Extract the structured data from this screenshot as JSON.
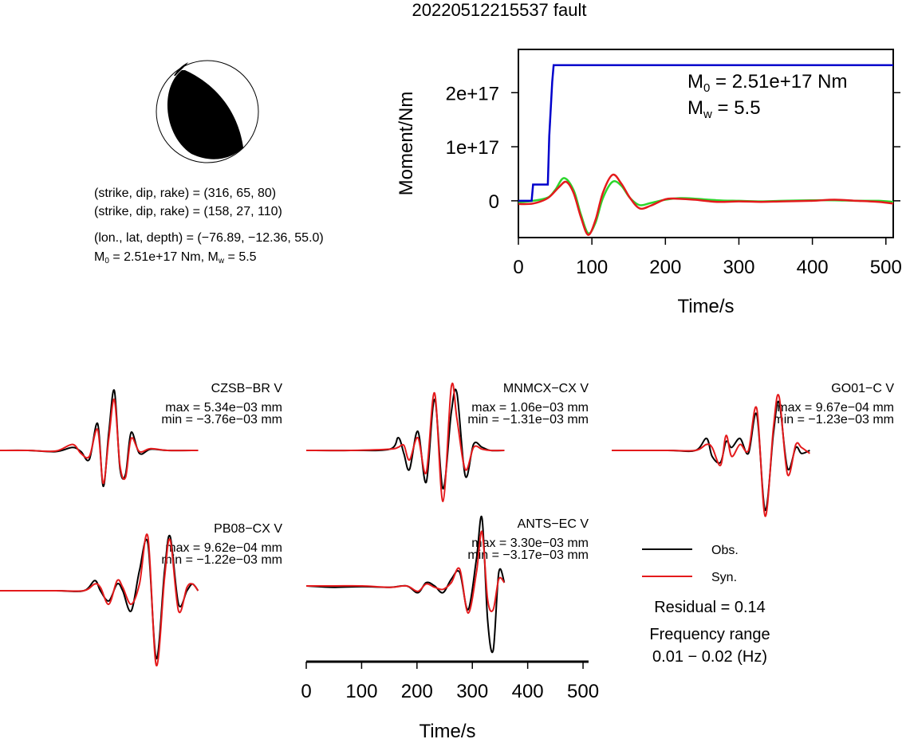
{
  "title": "20220512215537 fault",
  "mechanism": {
    "line1": "(strike, dip, rake) = (316, 65, 80)",
    "line2": "(strike, dip, rake) = (158, 27, 110)",
    "line3": "(lon., lat, depth) = (−76.89, −12.36, 55.0)",
    "line4_m0": "M",
    "line4_sub": "0",
    "line4_rest": " = 2.51e+17 Nm, M",
    "line4_sub2": "w",
    "line4_end": " = 5.5"
  },
  "moment_panel": {
    "ylabel": "Moment/Nm",
    "xlabel": "Time/s",
    "m0_label": "M",
    "m0_sub": "0",
    "m0_value": " = 2.51e+17 Nm",
    "mw_label": "M",
    "mw_sub": "w",
    "mw_value": " = 5.5",
    "yticks": [
      "0",
      "1e+17",
      "2e+17"
    ],
    "xticks": [
      "0",
      "100",
      "200",
      "300",
      "400",
      "500"
    ]
  },
  "stations": [
    {
      "name": "CZSB−BR V",
      "max": "max = 5.34e−03 mm",
      "min": "min = −3.76e−03 mm"
    },
    {
      "name": "MNMCX−CX V",
      "max": "max = 1.06e−03 mm",
      "min": "min = −1.31e−03 mm"
    },
    {
      "name": "GO01−C V",
      "max": "max = 9.67e−04 mm",
      "min": "min = −1.23e−03 mm"
    },
    {
      "name": "PB08−CX V",
      "max": "max = 9.62e−04 mm",
      "min": "min = −1.22e−03 mm"
    },
    {
      "name": "ANTS−EC V",
      "max": "max = 3.30e−03 mm",
      "min": "min = −3.17e−03 mm"
    }
  ],
  "legend": {
    "obs": "Obs.",
    "syn": "Syn.",
    "obs_color": "#000000",
    "syn_color": "#e41a1c"
  },
  "residual": "Residual = 0.14",
  "freq_label": "Frequency range",
  "freq_value": "0.01 − 0.02 (Hz)",
  "wave_axis": {
    "xlabel": "Time/s",
    "xticks": [
      "0",
      "100",
      "200",
      "300",
      "400",
      "500"
    ]
  },
  "chart_data": [
    {
      "type": "line",
      "title": "20220512215537 fault",
      "xlabel": "Time/s",
      "ylabel": "Moment/Nm",
      "xlim": [
        0,
        510
      ],
      "ylim": [
        -6.8e+16,
        2.8e+17
      ],
      "series": [
        {
          "color": "#0000cc",
          "x": [
            0,
            18,
            20,
            32,
            40,
            42,
            46,
            48,
            510
          ],
          "y": [
            0,
            0,
            3e+16,
            3e+16,
            3e+16,
            1.2e+17,
            2.2e+17,
            2.51e+17,
            2.51e+17
          ]
        },
        {
          "color": "#e41a1c",
          "x": [
            0,
            20,
            40,
            55,
            65,
            75,
            85,
            95,
            105,
            115,
            128,
            140,
            152,
            165,
            180,
            200,
            215,
            240,
            270,
            300,
            330,
            360,
            400,
            430,
            460,
            490,
            510
          ],
          "y": [
            -6000000000000000.0,
            -5000000000000000.0,
            5000000000000000.0,
            2.5e+16,
            3.5e+16,
            1.5e+16,
            -3e+16,
            -6.3e+16,
            -3.5e+16,
            1.5e+16,
            4.8e+16,
            3.2e+16,
            5000000000000000.0,
            -1.4e+16,
            -9000000000000000.0,
            3000000000000000.0,
            4000000000000000.0,
            2000000000000000.0,
            -2000000000000000.0,
            -1000000000000000.0,
            -2000000000000000.0,
            -1000000000000000.0,
            0.0,
            2000000000000000.0,
            0.0,
            -2000000000000000.0,
            -5000000000000000.0
          ]
        },
        {
          "color": "#2bd62b",
          "x": [
            0,
            20,
            40,
            50,
            62,
            75,
            85,
            95,
            105,
            115,
            128,
            140,
            152,
            165,
            180,
            200,
            220,
            240,
            270,
            300,
            330,
            360,
            400,
            430,
            460,
            490,
            510
          ],
          "y": [
            -3000000000000000.0,
            0.0,
            6000000000000000.0,
            2e+16,
            4.2e+16,
            2e+16,
            -2.5e+16,
            -6e+16,
            -4e+16,
            5000000000000000.0,
            3.5e+16,
            2.8e+16,
            5000000000000000.0,
            -8000000000000000.0,
            -4000000000000000.0,
            2000000000000000.0,
            5000000000000000.0,
            4000000000000000.0,
            1000000000000000.0,
            0.0,
            -1000000000000000.0,
            0.0,
            1000000000000000.0,
            1000000000000000.0,
            0.0,
            0.0,
            -2000000000000000.0
          ]
        }
      ]
    },
    {
      "type": "line",
      "xlabel": "Time/s",
      "xlim": [
        0,
        510
      ],
      "stations": [
        {
          "name": "CZSB−BR V",
          "obs": [
            [
              0,
              0
            ],
            [
              50,
              0
            ],
            [
              100,
              -0.02
            ],
            [
              130,
              0.05
            ],
            [
              145,
              -0.02
            ],
            [
              160,
              -0.15
            ],
            [
              175,
              0.45
            ],
            [
              185,
              -0.6
            ],
            [
              195,
              0.3
            ],
            [
              205,
              1.0
            ],
            [
              215,
              -0.3
            ],
            [
              225,
              -0.4
            ],
            [
              235,
              0.3
            ],
            [
              250,
              -0.05
            ],
            [
              270,
              0.02
            ],
            [
              300,
              0
            ],
            [
              355,
              0
            ]
          ],
          "syn": [
            [
              0,
              0
            ],
            [
              50,
              0
            ],
            [
              100,
              -0.01
            ],
            [
              130,
              0.1
            ],
            [
              145,
              -0.05
            ],
            [
              160,
              -0.1
            ],
            [
              175,
              0.35
            ],
            [
              185,
              -0.55
            ],
            [
              195,
              0.2
            ],
            [
              205,
              0.85
            ],
            [
              215,
              -0.25
            ],
            [
              225,
              -0.45
            ],
            [
              235,
              0.2
            ],
            [
              250,
              -0.02
            ],
            [
              270,
              0.03
            ],
            [
              300,
              0
            ],
            [
              355,
              0
            ]
          ]
        },
        {
          "name": "MNMCX−CX V",
          "obs": [
            [
              0,
              0
            ],
            [
              80,
              0
            ],
            [
              150,
              0.02
            ],
            [
              165,
              0.2
            ],
            [
              175,
              -0.05
            ],
            [
              185,
              -0.3
            ],
            [
              200,
              0.3
            ],
            [
              215,
              -0.5
            ],
            [
              230,
              0.8
            ],
            [
              245,
              -0.6
            ],
            [
              260,
              0.6
            ],
            [
              270,
              0.9
            ],
            [
              285,
              -0.4
            ],
            [
              300,
              0.1
            ],
            [
              315,
              0.05
            ],
            [
              330,
              0
            ],
            [
              355,
              0
            ]
          ],
          "syn": [
            [
              0,
              0
            ],
            [
              80,
              0
            ],
            [
              150,
              0.02
            ],
            [
              165,
              0.05
            ],
            [
              175,
              0.08
            ],
            [
              185,
              -0.15
            ],
            [
              200,
              0.2
            ],
            [
              215,
              -0.35
            ],
            [
              230,
              0.9
            ],
            [
              245,
              -0.8
            ],
            [
              260,
              1.0
            ],
            [
              270,
              0.5
            ],
            [
              285,
              -0.3
            ],
            [
              300,
              0.05
            ],
            [
              315,
              0.02
            ],
            [
              330,
              0
            ],
            [
              355,
              0
            ]
          ]
        },
        {
          "name": "GO01−C V",
          "obs": [
            [
              0,
              0
            ],
            [
              100,
              0
            ],
            [
              150,
              0
            ],
            [
              170,
              0.2
            ],
            [
              180,
              -0.1
            ],
            [
              195,
              -0.2
            ],
            [
              205,
              0.15
            ],
            [
              215,
              0.05
            ],
            [
              230,
              0.2
            ],
            [
              245,
              -0.05
            ],
            [
              260,
              0.6
            ],
            [
              275,
              -1.0
            ],
            [
              290,
              0.3
            ],
            [
              300,
              0.8
            ],
            [
              315,
              -0.3
            ],
            [
              330,
              0.05
            ],
            [
              340,
              -0.05
            ],
            [
              355,
              0.0
            ]
          ],
          "syn": [
            [
              0,
              0
            ],
            [
              100,
              0
            ],
            [
              150,
              0
            ],
            [
              170,
              0.1
            ],
            [
              180,
              0.05
            ],
            [
              195,
              -0.25
            ],
            [
              205,
              0.25
            ],
            [
              215,
              -0.1
            ],
            [
              230,
              0.1
            ],
            [
              245,
              0.0
            ],
            [
              260,
              0.7
            ],
            [
              275,
              -1.1
            ],
            [
              290,
              0.4
            ],
            [
              300,
              0.9
            ],
            [
              315,
              -0.4
            ],
            [
              330,
              0.1
            ],
            [
              340,
              0.05
            ],
            [
              355,
              -0.05
            ]
          ]
        },
        {
          "name": "PB08−CX V",
          "obs": [
            [
              0,
              0
            ],
            [
              100,
              0
            ],
            [
              150,
              0
            ],
            [
              170,
              0.15
            ],
            [
              180,
              0.0
            ],
            [
              195,
              -0.15
            ],
            [
              210,
              0.1
            ],
            [
              220,
              0.0
            ],
            [
              235,
              -0.3
            ],
            [
              250,
              0.3
            ],
            [
              265,
              0.7
            ],
            [
              280,
              -1.0
            ],
            [
              295,
              0.3
            ],
            [
              305,
              0.8
            ],
            [
              320,
              -0.2
            ],
            [
              335,
              0.0
            ],
            [
              345,
              0.1
            ],
            [
              355,
              0.0
            ]
          ],
          "syn": [
            [
              0,
              0
            ],
            [
              100,
              0
            ],
            [
              150,
              0
            ],
            [
              170,
              0.1
            ],
            [
              180,
              0.05
            ],
            [
              195,
              -0.2
            ],
            [
              210,
              0.15
            ],
            [
              220,
              0.05
            ],
            [
              235,
              -0.2
            ],
            [
              250,
              0.1
            ],
            [
              265,
              0.8
            ],
            [
              280,
              -1.1
            ],
            [
              295,
              0.2
            ],
            [
              305,
              0.75
            ],
            [
              320,
              -0.3
            ],
            [
              335,
              0.05
            ],
            [
              345,
              0.1
            ],
            [
              355,
              0.0
            ]
          ]
        },
        {
          "name": "ANTS−EC V",
          "obs": [
            [
              0,
              0
            ],
            [
              50,
              -0.02
            ],
            [
              100,
              -0.01
            ],
            [
              150,
              -0.02
            ],
            [
              180,
              0.0
            ],
            [
              200,
              -0.1
            ],
            [
              215,
              0.05
            ],
            [
              230,
              0.0
            ],
            [
              245,
              -0.1
            ],
            [
              260,
              0.1
            ],
            [
              275,
              0.2
            ],
            [
              290,
              -0.35
            ],
            [
              305,
              0.4
            ],
            [
              315,
              1.0
            ],
            [
              325,
              -0.5
            ],
            [
              335,
              -0.95
            ],
            [
              345,
              0.2
            ],
            [
              355,
              0.05
            ]
          ],
          "syn": [
            [
              0,
              0
            ],
            [
              50,
              0.0
            ],
            [
              100,
              0.0
            ],
            [
              150,
              -0.02
            ],
            [
              180,
              0.0
            ],
            [
              200,
              -0.08
            ],
            [
              215,
              0.03
            ],
            [
              230,
              -0.02
            ],
            [
              245,
              -0.05
            ],
            [
              260,
              0.05
            ],
            [
              275,
              0.25
            ],
            [
              290,
              -0.4
            ],
            [
              305,
              0.2
            ],
            [
              315,
              0.8
            ],
            [
              325,
              -0.2
            ],
            [
              335,
              -0.35
            ],
            [
              345,
              0.1
            ],
            [
              355,
              0.05
            ]
          ]
        }
      ]
    }
  ]
}
